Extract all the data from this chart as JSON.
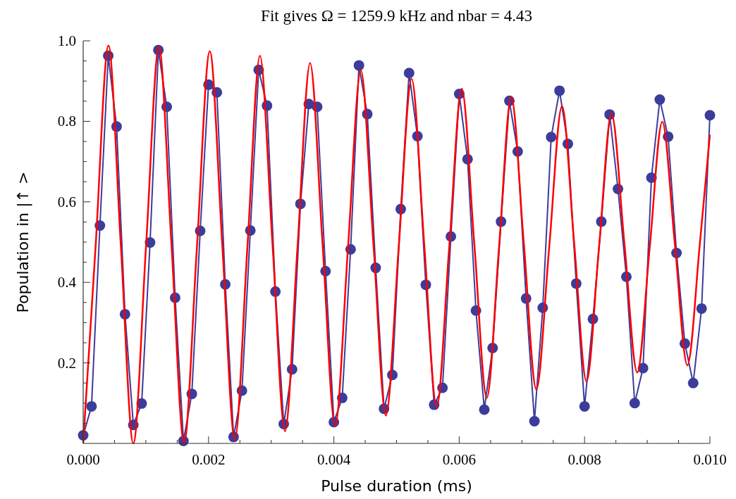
{
  "chart_data": {
    "type": "line",
    "title": "Fit gives Ω = 1259.9 kHz and nbar = 4.43",
    "xlabel": "Pulse duration (ms)",
    "ylabel": "Population in |↑ >",
    "xlim": [
      0,
      0.01
    ],
    "ylim": [
      0,
      1
    ],
    "xticks": [
      {
        "value": 0,
        "label": "0.000"
      },
      {
        "value": 0.0005,
        "label": null
      },
      {
        "value": 0.001,
        "label": null
      },
      {
        "value": 0.0015,
        "label": null
      },
      {
        "value": 0.002,
        "label": "0.002"
      },
      {
        "value": 0.0025,
        "label": null
      },
      {
        "value": 0.003,
        "label": null
      },
      {
        "value": 0.0035,
        "label": null
      },
      {
        "value": 0.004,
        "label": "0.004"
      },
      {
        "value": 0.0045,
        "label": null
      },
      {
        "value": 0.005,
        "label": null
      },
      {
        "value": 0.0055,
        "label": null
      },
      {
        "value": 0.006,
        "label": "0.006"
      },
      {
        "value": 0.0065,
        "label": null
      },
      {
        "value": 0.007,
        "label": null
      },
      {
        "value": 0.0075,
        "label": null
      },
      {
        "value": 0.008,
        "label": "0.008"
      },
      {
        "value": 0.0085,
        "label": null
      },
      {
        "value": 0.009,
        "label": null
      },
      {
        "value": 0.0095,
        "label": null
      },
      {
        "value": 0.01,
        "label": "0.010"
      }
    ],
    "yticks": [
      {
        "value": 0.05,
        "label": null
      },
      {
        "value": 0.1,
        "label": null
      },
      {
        "value": 0.15,
        "label": null
      },
      {
        "value": 0.2,
        "label": "0.2"
      },
      {
        "value": 0.25,
        "label": null
      },
      {
        "value": 0.3,
        "label": null
      },
      {
        "value": 0.35,
        "label": null
      },
      {
        "value": 0.4,
        "label": "0.4"
      },
      {
        "value": 0.45,
        "label": null
      },
      {
        "value": 0.5,
        "label": null
      },
      {
        "value": 0.55,
        "label": null
      },
      {
        "value": 0.6,
        "label": "0.6"
      },
      {
        "value": 0.65,
        "label": null
      },
      {
        "value": 0.7,
        "label": null
      },
      {
        "value": 0.75,
        "label": null
      },
      {
        "value": 0.8,
        "label": "0.8"
      },
      {
        "value": 0.85,
        "label": null
      },
      {
        "value": 0.9,
        "label": null
      },
      {
        "value": 0.95,
        "label": null
      },
      {
        "value": 1,
        "label": "1.0"
      }
    ],
    "series": [
      {
        "color": "#3c3c9a",
        "marker": "circle",
        "x": [
          0,
          0.000133,
          0.000267,
          0.0004,
          0.000533,
          0.000667,
          0.0008,
          0.000933,
          0.001067,
          0.0012,
          0.001333,
          0.001467,
          0.0016,
          0.001733,
          0.001867,
          0.002,
          0.002133,
          0.002267,
          0.0024,
          0.002533,
          0.002667,
          0.0028,
          0.002933,
          0.003067,
          0.0032,
          0.003333,
          0.003467,
          0.0036,
          0.003733,
          0.003867,
          0.004,
          0.004133,
          0.004267,
          0.0044,
          0.004533,
          0.004667,
          0.0048,
          0.004933,
          0.005067,
          0.0052,
          0.005333,
          0.005467,
          0.0056,
          0.005733,
          0.005867,
          0.006,
          0.006133,
          0.006267,
          0.0064,
          0.006533,
          0.006667,
          0.0068,
          0.006933,
          0.007067,
          0.0072,
          0.007333,
          0.007467,
          0.0076,
          0.007733,
          0.007867,
          0.008,
          0.008133,
          0.008267,
          0.0084,
          0.008533,
          0.008667,
          0.0088,
          0.008933,
          0.009067,
          0.0092,
          0.009333,
          0.009467,
          0.0096,
          0.009733,
          0.009867,
          0.01
        ],
        "values": [
          0.02,
          0.092,
          0.541,
          0.963,
          0.787,
          0.321,
          0.046,
          0.099,
          0.499,
          0.977,
          0.836,
          0.362,
          0.006,
          0.123,
          0.528,
          0.891,
          0.872,
          0.395,
          0.016,
          0.131,
          0.529,
          0.928,
          0.839,
          0.377,
          0.048,
          0.184,
          0.595,
          0.843,
          0.836,
          0.428,
          0.053,
          0.113,
          0.482,
          0.939,
          0.818,
          0.436,
          0.086,
          0.17,
          0.582,
          0.92,
          0.763,
          0.394,
          0.096,
          0.138,
          0.514,
          0.868,
          0.706,
          0.33,
          0.084,
          0.237,
          0.551,
          0.851,
          0.725,
          0.36,
          0.055,
          0.337,
          0.761,
          0.876,
          0.744,
          0.397,
          0.092,
          0.309,
          0.551,
          0.817,
          0.632,
          0.414,
          0.1,
          0.187,
          0.66,
          0.854,
          0.762,
          0.473,
          0.248,
          0.15,
          0.335,
          0.815
        ]
      },
      {
        "color": "#ff0000",
        "marker": "none",
        "x": [
          0,
          0.0002,
          0.000403,
          0.0006,
          0.0008,
          0.001004,
          0.001208,
          0.001409,
          0.00161,
          0.001815,
          0.00202,
          0.00222,
          0.00242,
          0.00262,
          0.00282,
          0.00302,
          0.00322,
          0.00342,
          0.00362,
          0.00382,
          0.00402,
          0.004225,
          0.00443,
          0.00463,
          0.00483,
          0.005035,
          0.00524,
          0.00544,
          0.00564,
          0.00584,
          0.00604,
          0.00624,
          0.00644,
          0.006635,
          0.00683,
          0.00703,
          0.00723,
          0.007435,
          0.00764,
          0.007835,
          0.00803,
          0.00823,
          0.00843,
          0.008635,
          0.00884,
          0.00904,
          0.00924,
          0.00944,
          0.00964,
          0.00984,
          0.01
        ],
        "values": [
          0,
          0.494,
          0.988,
          0.494,
          0,
          0.493,
          0.985,
          0.494,
          0.002,
          0.488,
          0.974,
          0.492,
          0.01,
          0.487,
          0.963,
          0.497,
          0.03,
          0.488,
          0.945,
          0.494,
          0.043,
          0.485,
          0.927,
          0.498,
          0.069,
          0.488,
          0.906,
          0.498,
          0.09,
          0.486,
          0.881,
          0.497,
          0.113,
          0.487,
          0.861,
          0.498,
          0.134,
          0.486,
          0.838,
          0.496,
          0.154,
          0.486,
          0.818,
          0.497,
          0.176,
          0.488,
          0.799,
          0.497,
          0.194,
          0.497,
          0.767
        ]
      }
    ]
  }
}
